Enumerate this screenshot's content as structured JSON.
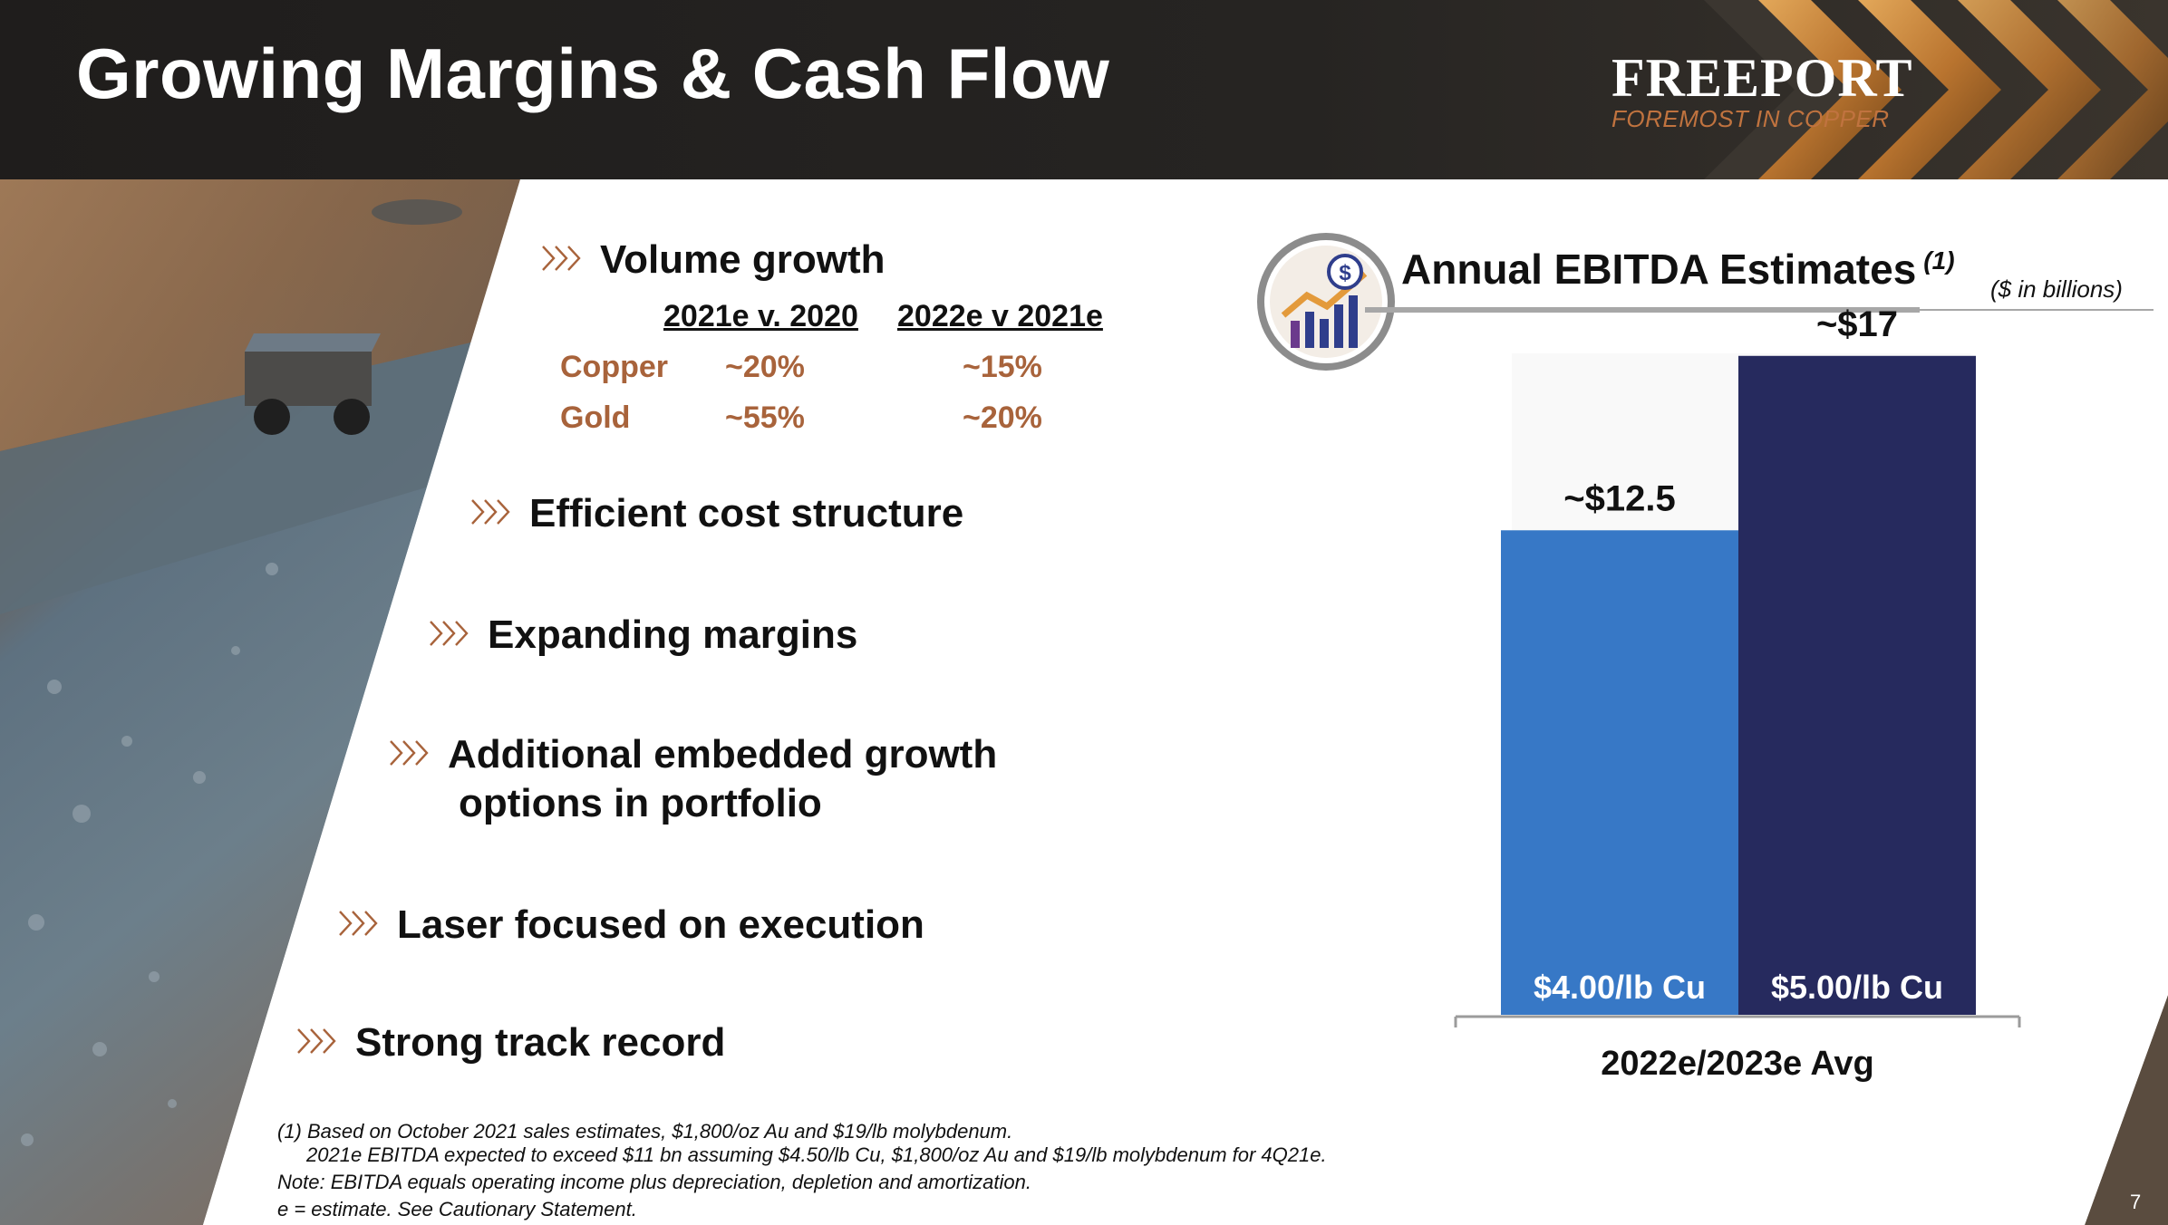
{
  "header": {
    "title": "Growing Margins & Cash Flow",
    "logo_name": "FREEPORT",
    "logo_tagline": "FOREMOST IN COPPER"
  },
  "colors": {
    "accent": "#a8633b",
    "bar1": "#3778c6",
    "bar2": "#262a5e"
  },
  "bullets": {
    "volume_growth": "Volume growth",
    "cost": "Efficient cost structure",
    "margins": "Expanding margins",
    "growth_l1": "Additional embedded growth",
    "growth_l2": "options in portfolio",
    "execution": "Laser focused on execution",
    "track_record": "Strong track record"
  },
  "volume_table": {
    "headers": [
      "2021e v. 2020",
      "2022e v 2021e"
    ],
    "rows": [
      {
        "metal": "Copper",
        "v1": "~20%",
        "v2": "~15%"
      },
      {
        "metal": "Gold",
        "v1": "~55%",
        "v2": "~20%"
      }
    ]
  },
  "chart_header": {
    "title": "Annual EBITDA Estimates",
    "footnote_ref": "(1)",
    "units": "($ in billions)"
  },
  "chart_data": {
    "type": "bar",
    "title": "Annual EBITDA Estimates",
    "ylabel": "",
    "xlabel": "",
    "category": "2022e/2023e Avg",
    "series": [
      {
        "name": "$4.00/lb Cu",
        "value": 12.5,
        "label": "~$12.5"
      },
      {
        "name": "$5.00/lb Cu",
        "value": 17,
        "label": "~$17"
      }
    ],
    "ylim": [
      0,
      18
    ],
    "grid": false
  },
  "footnotes": {
    "f1": "(1) Based on October 2021 sales estimates, $1,800/oz Au and $19/lb molybdenum.",
    "f1b": "2021e EBITDA expected to exceed $11 bn assuming $4.50/lb Cu, $1,800/oz Au and $19/lb molybdenum for 4Q21e.",
    "note": "Note: EBITDA equals operating income plus depreciation, depletion and amortization.",
    "e": "e = estimate. See Cautionary Statement."
  },
  "page_number": "7"
}
